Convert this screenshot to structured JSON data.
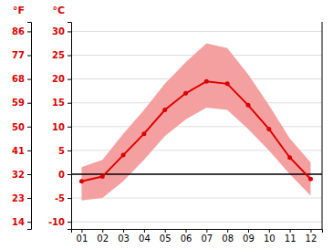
{
  "chart_data": {
    "type": "line",
    "x": [
      1,
      2,
      3,
      4,
      5,
      6,
      7,
      8,
      9,
      10,
      11,
      12
    ],
    "xlim": [
      0.5,
      12.55
    ],
    "xticks": [
      {
        "value": 1,
        "label": "01"
      },
      {
        "value": 2,
        "label": "02"
      },
      {
        "value": 3,
        "label": "03"
      },
      {
        "value": 4,
        "label": "04"
      },
      {
        "value": 5,
        "label": "05"
      },
      {
        "value": 6,
        "label": "06"
      },
      {
        "value": 7,
        "label": "07"
      },
      {
        "value": 8,
        "label": "08"
      },
      {
        "value": 9,
        "label": "09"
      },
      {
        "value": 10,
        "label": "10"
      },
      {
        "value": 11,
        "label": "11"
      },
      {
        "value": 12,
        "label": "12"
      }
    ],
    "ylabel": "°C",
    "ylim": [
      -11.5,
      32
    ],
    "yticks": [
      30,
      25,
      20,
      15,
      10,
      5,
      0,
      -5,
      -10
    ],
    "y2label": "°F",
    "y2lim": [
      11.3,
      89.6
    ],
    "y2ticks": [
      86,
      77,
      68,
      59,
      50,
      41,
      32,
      23,
      14
    ],
    "grid": true,
    "series": [
      {
        "type": "area",
        "color": "#f5a0a0",
        "lower": [
          -5.5,
          -5.0,
          -1.5,
          3.0,
          8.0,
          11.5,
          14.0,
          13.5,
          9.5,
          5.0,
          0.0,
          -4.5
        ],
        "upper": [
          1.5,
          3.0,
          8.5,
          13.5,
          19.0,
          23.5,
          27.5,
          26.5,
          21.0,
          14.5,
          7.5,
          2.5
        ]
      },
      {
        "type": "hline",
        "color": "#000000",
        "y": 0
      },
      {
        "type": "line",
        "color": "#dd0000",
        "marker": "circle",
        "values": [
          -1.5,
          -0.5,
          4.0,
          8.5,
          13.5,
          17.0,
          19.5,
          19.0,
          14.5,
          9.5,
          3.5,
          -1.0
        ]
      }
    ]
  }
}
